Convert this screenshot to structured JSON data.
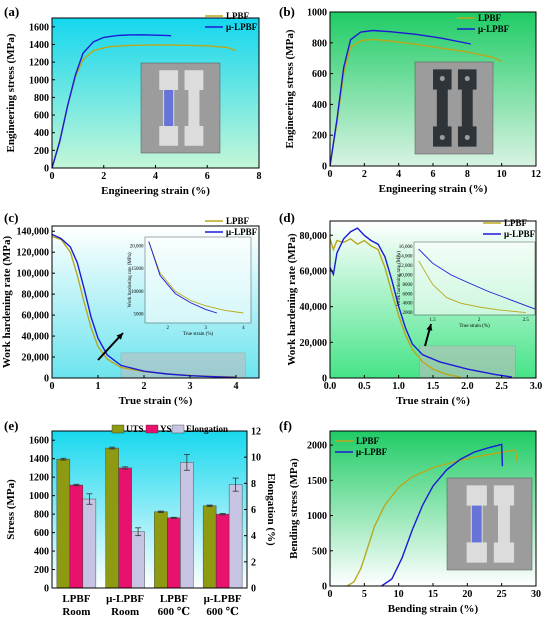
{
  "colors": {
    "lpbf": "#b9a81c",
    "mu_lpbf": "#1d1ad6",
    "uts": "#8d9a12",
    "ys": "#e8126e",
    "elong": "#c7c4e3"
  },
  "chart_data": [
    {
      "panel": "(a)",
      "type": "line",
      "xlabel": "Engineering strain (%)",
      "ylabel": "Engineering stress (MPa)",
      "xlim": [
        0,
        8
      ],
      "ylim": [
        0,
        1700
      ],
      "xticks": [
        0,
        2,
        4,
        6,
        8
      ],
      "yticks": [
        0,
        200,
        400,
        600,
        800,
        1000,
        1200,
        1400,
        1600
      ],
      "legend": "top-right",
      "inset": "photo of two dog-bone tensile specimens",
      "series": [
        {
          "name": "LPBF",
          "x": [
            0,
            0.3,
            0.6,
            0.9,
            1.2,
            1.6,
            2.2,
            3.0,
            4.0,
            5.0,
            6.0,
            6.8,
            7.1
          ],
          "y": [
            0,
            320,
            700,
            1030,
            1230,
            1330,
            1375,
            1390,
            1395,
            1392,
            1385,
            1365,
            1330
          ]
        },
        {
          "name": "μ-LPBF",
          "x": [
            0,
            0.3,
            0.6,
            0.9,
            1.2,
            1.6,
            2.0,
            2.5,
            3.0,
            3.5,
            4.0,
            4.5,
            4.6
          ],
          "y": [
            0,
            300,
            700,
            1050,
            1300,
            1430,
            1480,
            1500,
            1508,
            1510,
            1505,
            1500,
            1498
          ]
        }
      ]
    },
    {
      "panel": "(b)",
      "type": "line",
      "xlabel": "Engineering strain (%)",
      "ylabel": "Engineering stress (MPa)",
      "xlim": [
        0,
        12
      ],
      "ylim": [
        0,
        1000
      ],
      "xticks": [
        0,
        2,
        4,
        6,
        8,
        10,
        12
      ],
      "yticks": [
        0,
        200,
        400,
        600,
        800,
        1000
      ],
      "legend": "top-right",
      "inset": "photo of two dark flat tensile specimens",
      "series": [
        {
          "name": "LPBF",
          "x": [
            0,
            0.4,
            0.8,
            1.2,
            1.8,
            2.5,
            3.5,
            5,
            6.5,
            8,
            9.5,
            10
          ],
          "y": [
            0,
            280,
            600,
            770,
            815,
            822,
            812,
            790,
            765,
            740,
            705,
            680
          ]
        },
        {
          "name": "μ-LPBF",
          "x": [
            0,
            0.4,
            0.8,
            1.2,
            1.8,
            2.5,
            3.5,
            5,
            6.5,
            8.2
          ],
          "y": [
            0,
            300,
            640,
            820,
            870,
            880,
            872,
            855,
            830,
            792
          ]
        }
      ]
    },
    {
      "panel": "(c)",
      "type": "line",
      "xlabel": "True strain (%)",
      "ylabel": "Work hardening rate (MPa)",
      "xlim": [
        0,
        4.5
      ],
      "ylim": [
        0,
        145000
      ],
      "xticks": [
        0,
        1,
        2,
        3,
        4
      ],
      "yticks": [
        0,
        20000,
        40000,
        60000,
        80000,
        100000,
        120000,
        140000
      ],
      "tick_labels_y": [
        "0",
        "20,000",
        "40,000",
        "60,000",
        "80,000",
        "100,000",
        "120,000",
        "140,000"
      ],
      "legend": "top-right",
      "series": [
        {
          "name": "LPBF",
          "x": [
            0,
            0.2,
            0.4,
            0.55,
            0.7,
            0.85,
            1.0,
            1.2,
            1.5,
            2.0,
            2.5,
            3.0,
            3.5,
            4.0
          ],
          "y": [
            135000,
            132000,
            120000,
            98000,
            72000,
            48000,
            30000,
            18000,
            10000,
            6000,
            4000,
            2500,
            1500,
            1000
          ]
        },
        {
          "name": "μ-LPBF",
          "x": [
            0,
            0.2,
            0.4,
            0.55,
            0.7,
            0.85,
            1.0,
            1.2,
            1.5,
            2.0,
            2.5,
            3.0,
            3.5,
            4.0
          ],
          "y": [
            137000,
            133000,
            125000,
            110000,
            85000,
            58000,
            38000,
            22000,
            12000,
            6500,
            3800,
            2200,
            1200,
            600
          ]
        }
      ],
      "inset": {
        "xlabel": "True strain (%)",
        "ylabel": "Work hardening rate (MPa)",
        "xticks": [
          2,
          3,
          4
        ],
        "yticks": [
          5000,
          10000,
          15000,
          20000
        ],
        "tick_labels_y": [
          "5000",
          "10000",
          "15000",
          "20,000"
        ],
        "series": [
          {
            "name": "LPBF",
            "x": [
              1.5,
              1.8,
              2.2,
              2.6,
              3.0,
              3.5,
              4.0
            ],
            "y": [
              21000,
              14000,
              10000,
              8000,
              6800,
              5800,
              5200
            ]
          },
          {
            "name": "μ-LPBF",
            "x": [
              1.5,
              1.8,
              2.2,
              2.6,
              3.0,
              3.3
            ],
            "y": [
              21000,
              13500,
              9500,
              7500,
              6000,
              5200
            ]
          }
        ]
      }
    },
    {
      "panel": "(d)",
      "type": "line",
      "xlabel": "True strain (%)",
      "ylabel": "Work hardening rate (MPa)",
      "xlim": [
        0,
        3.0
      ],
      "ylim": [
        0,
        88000
      ],
      "xticks": [
        0.0,
        0.5,
        1.0,
        1.5,
        2.0,
        2.5,
        3.0
      ],
      "yticks": [
        0,
        20000,
        40000,
        60000,
        80000
      ],
      "tick_labels_x": [
        "0.0",
        "0.5",
        "1.0",
        "1.5",
        "2.0",
        "2.5",
        "3.0"
      ],
      "tick_labels_y": [
        "0",
        "20,000",
        "40,000",
        "60,000",
        "80,000"
      ],
      "legend": "top-right",
      "series": [
        {
          "name": "LPBF",
          "x": [
            0,
            0.05,
            0.1,
            0.2,
            0.3,
            0.4,
            0.5,
            0.6,
            0.7,
            0.8,
            0.9,
            1.0,
            1.1,
            1.2,
            1.35,
            1.5,
            1.7,
            1.9
          ],
          "y": [
            78000,
            72000,
            77000,
            76000,
            78000,
            75000,
            77000,
            74000,
            72000,
            62000,
            48000,
            35000,
            24000,
            16000,
            9000,
            5000,
            2000,
            500
          ]
        },
        {
          "name": "μ-LPBF",
          "x": [
            0,
            0.05,
            0.1,
            0.2,
            0.3,
            0.4,
            0.5,
            0.6,
            0.7,
            0.8,
            0.9,
            1.0,
            1.1,
            1.2,
            1.35,
            1.6,
            2.0,
            2.4,
            2.65
          ],
          "y": [
            62000,
            58000,
            70000,
            78000,
            82000,
            84000,
            80000,
            77000,
            75000,
            68000,
            55000,
            40000,
            28000,
            19000,
            13000,
            9000,
            5000,
            2000,
            500
          ]
        }
      ],
      "inset": {
        "xlabel": "True strain (%)",
        "ylabel": "Work hardening rate (MPa)",
        "xticks": [
          1.5,
          2.0,
          2.5
        ],
        "yticks": [
          2000,
          4000,
          6000,
          8000,
          10000,
          12000,
          14000,
          16000
        ],
        "tick_labels_y": [
          "2000",
          "4000",
          "6000",
          "8000",
          "10,000",
          "12,000",
          "14,000",
          "16,000"
        ],
        "series": [
          {
            "name": "LPBF",
            "x": [
              1.35,
              1.5,
              1.65,
              1.8,
              2.0,
              2.2,
              2.4,
              2.5
            ],
            "y": [
              13000,
              8000,
              5200,
              4000,
              3200,
              2600,
              2200,
              2000
            ]
          },
          {
            "name": "μ-LPBF",
            "x": [
              1.35,
              1.5,
              1.7,
              1.9,
              2.1,
              2.3,
              2.5,
              2.6
            ],
            "y": [
              15500,
              12500,
              10000,
              8200,
              6500,
              5000,
              3500,
              2800
            ]
          }
        ]
      }
    },
    {
      "panel": "(e)",
      "type": "bar",
      "ylabel": "Stress (MPa)",
      "y2label": "Elongation (%)",
      "ylim": [
        0,
        1700
      ],
      "y2lim": [
        0,
        12
      ],
      "yticks": [
        0,
        200,
        400,
        600,
        800,
        1000,
        1200,
        1400,
        1600
      ],
      "y2ticks": [
        0,
        2,
        4,
        6,
        8,
        10,
        12
      ],
      "categories": [
        [
          "LPBF",
          "Room"
        ],
        [
          "μ-LPBF",
          "Room"
        ],
        [
          "LPBF",
          "600 ℃"
        ],
        [
          "μ-LPBF",
          "600 ℃"
        ]
      ],
      "legend": "top-center",
      "series": [
        {
          "name": "UTS",
          "axis": "left",
          "values": [
            1395,
            1515,
            825,
            890
          ],
          "errors": [
            10,
            10,
            8,
            8
          ]
        },
        {
          "name": "YS",
          "axis": "left",
          "values": [
            1115,
            1300,
            760,
            800
          ],
          "errors": [
            8,
            12,
            6,
            8
          ]
        },
        {
          "name": "Elongation",
          "axis": "right",
          "values": [
            6.8,
            4.3,
            9.6,
            7.9
          ],
          "errors": [
            0.4,
            0.3,
            0.6,
            0.5
          ]
        }
      ]
    },
    {
      "panel": "(f)",
      "type": "line",
      "xlabel": "Bending strain (%)",
      "ylabel": "Bending stress (MPa)",
      "xlim": [
        0,
        30
      ],
      "ylim": [
        0,
        2200
      ],
      "xticks": [
        0,
        5,
        10,
        15,
        20,
        25,
        30
      ],
      "yticks": [
        0,
        500,
        1000,
        1500,
        2000
      ],
      "legend": "top-left",
      "inset": "photo of two bending test specimens",
      "series": [
        {
          "name": "LPBF",
          "x": [
            2.5,
            3.5,
            4.5,
            5.5,
            6.5,
            8,
            10,
            12,
            15,
            18,
            21,
            24,
            27,
            27.3
          ],
          "y": [
            0,
            60,
            250,
            550,
            850,
            1150,
            1400,
            1550,
            1680,
            1760,
            1830,
            1880,
            1930,
            1750
          ]
        },
        {
          "name": "μ-LPBF",
          "x": [
            7.5,
            9,
            10.5,
            12,
            13.5,
            15,
            17,
            19,
            21,
            23,
            25,
            25.1
          ],
          "y": [
            0,
            100,
            400,
            800,
            1150,
            1420,
            1650,
            1800,
            1900,
            1960,
            2010,
            1700
          ]
        }
      ]
    }
  ]
}
